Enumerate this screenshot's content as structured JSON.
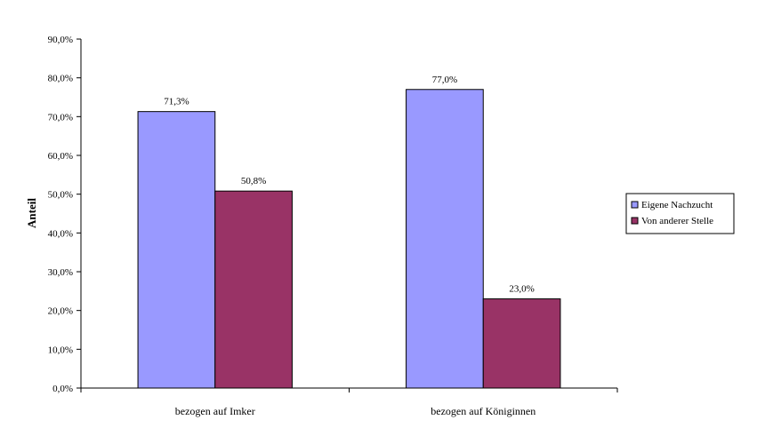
{
  "chart_data": {
    "type": "bar",
    "categories": [
      "bezogen auf Imker",
      "bezogen auf Königinnen"
    ],
    "series": [
      {
        "name": "Eigene Nachzucht",
        "values": [
          71.3,
          77.0
        ],
        "labels": [
          "71,3%",
          "77,0%"
        ],
        "color": "#9999ff"
      },
      {
        "name": "Von anderer Stelle",
        "values": [
          50.8,
          23.0
        ],
        "labels": [
          "50,8%",
          "23,0%"
        ],
        "color": "#993366"
      }
    ],
    "ylabel": "Anteil",
    "ylim": [
      0,
      90
    ],
    "yticks": [
      0,
      10,
      20,
      30,
      40,
      50,
      60,
      70,
      80,
      90
    ],
    "ytick_labels": [
      "0,0%",
      "10,0%",
      "20,0%",
      "30,0%",
      "40,0%",
      "50,0%",
      "60,0%",
      "70,0%",
      "80,0%",
      "90,0%"
    ],
    "grid": false,
    "legend_position": "right"
  }
}
